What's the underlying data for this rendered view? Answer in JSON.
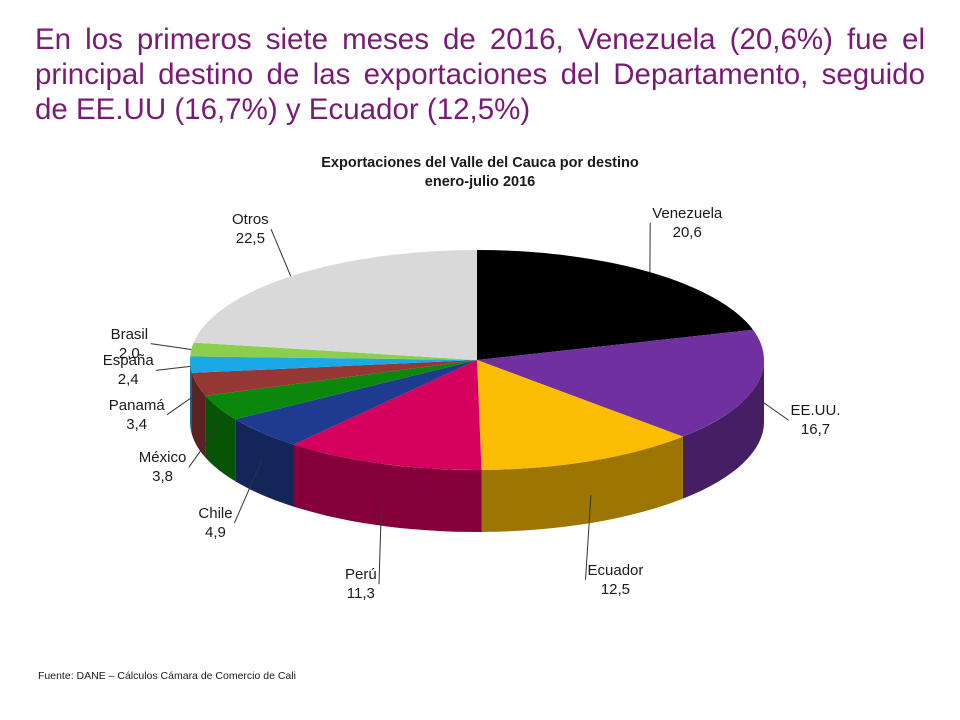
{
  "headline": "En los primeros siete meses de 2016, Venezuela (20,6%) fue el principal destino de las exportaciones del Departamento, seguido de EE.UU (16,7%) y Ecuador (12,5%)",
  "source": "Fuente: DANE – Cálculos Cámara de Comercio de Cali",
  "colors": {
    "headline": "#7b1a74"
  },
  "chart_data": {
    "type": "pie",
    "style": "3d",
    "title": "Exportaciones del Valle del Cauca por destino",
    "subtitle": "enero-julio 2016",
    "slices": [
      {
        "name": "Venezuela",
        "value": 20.6,
        "label": "20,6",
        "color": "#000000"
      },
      {
        "name": "EE.UU.",
        "value": 16.7,
        "label": "16,7",
        "color": "#7030a0"
      },
      {
        "name": "Ecuador",
        "value": 12.5,
        "label": "12,5",
        "color": "#fbbc04"
      },
      {
        "name": "Perú",
        "value": 11.3,
        "label": "11,3",
        "color": "#d6005e"
      },
      {
        "name": "Chile",
        "value": 4.9,
        "label": "4,9",
        "color": "#1f3b8f"
      },
      {
        "name": "México",
        "value": 3.8,
        "label": "3,8",
        "color": "#0b870b"
      },
      {
        "name": "Panamá",
        "value": 3.4,
        "label": "3,4",
        "color": "#953735"
      },
      {
        "name": "España",
        "value": 2.4,
        "label": "2,4",
        "color": "#19a9e6"
      },
      {
        "name": "Brasil",
        "value": 2.0,
        "label": "2,0",
        "color": "#8ccf4d"
      },
      {
        "name": "Otros",
        "value": 22.5,
        "label": "22,5",
        "color": "#d9d9d9"
      }
    ]
  }
}
